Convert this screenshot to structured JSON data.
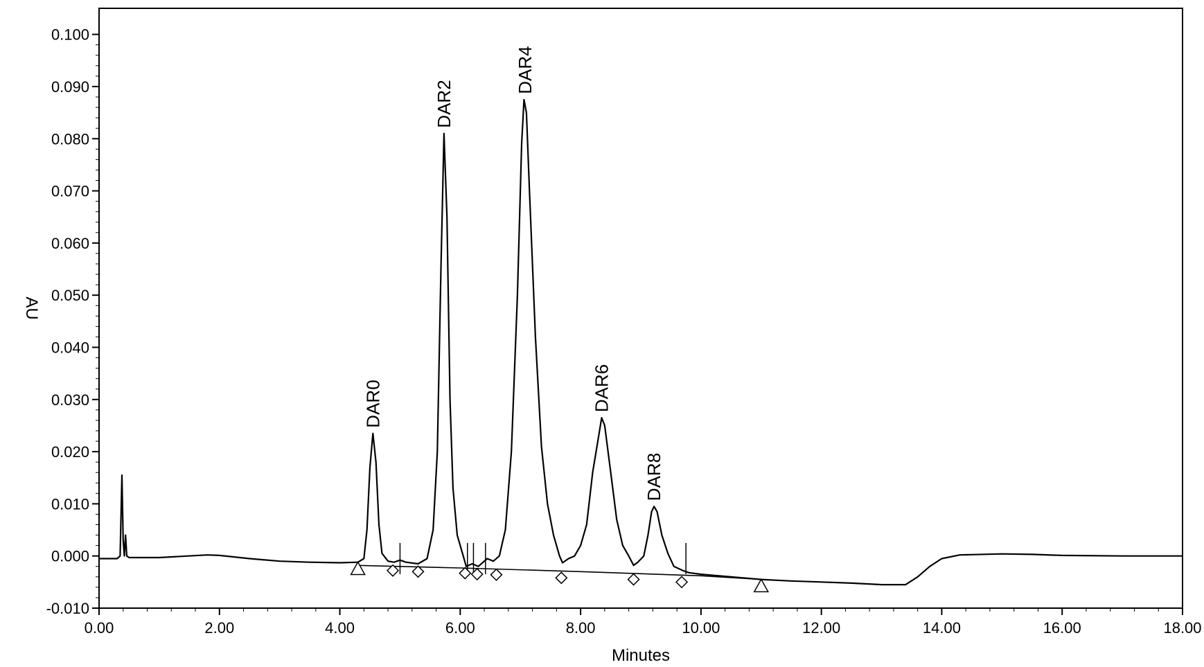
{
  "chart_data": {
    "type": "line",
    "xlabel": "Minutes",
    "ylabel": "AU",
    "xlim": [
      0,
      18
    ],
    "ylim": [
      -0.01,
      0.105
    ],
    "x_ticks": [
      "0.00",
      "2.00",
      "4.00",
      "6.00",
      "8.00",
      "10.00",
      "12.00",
      "14.00",
      "16.00",
      "18.00"
    ],
    "y_ticks": [
      "-0.010",
      "0.000",
      "0.010",
      "0.020",
      "0.030",
      "0.040",
      "0.050",
      "0.060",
      "0.070",
      "0.080",
      "0.090",
      "0.100"
    ],
    "grid": false,
    "series": [
      {
        "points": [
          [
            0.0,
            -0.0005
          ],
          [
            0.3,
            -0.0005
          ],
          [
            0.35,
            0.0
          ],
          [
            0.38,
            0.0155
          ],
          [
            0.4,
            0.003
          ],
          [
            0.42,
            0.0
          ],
          [
            0.44,
            0.004
          ],
          [
            0.46,
            0.0
          ],
          [
            0.5,
            -0.0003
          ],
          [
            1.0,
            -0.0003
          ],
          [
            1.8,
            0.0002
          ],
          [
            2.0,
            0.0001
          ],
          [
            2.5,
            -0.0005
          ],
          [
            3.0,
            -0.001
          ],
          [
            3.5,
            -0.0012
          ],
          [
            4.0,
            -0.0013
          ],
          [
            4.3,
            -0.0012
          ],
          [
            4.4,
            -0.0005
          ],
          [
            4.45,
            0.005
          ],
          [
            4.5,
            0.017
          ],
          [
            4.55,
            0.0235
          ],
          [
            4.6,
            0.018
          ],
          [
            4.65,
            0.006
          ],
          [
            4.7,
            0.0005
          ],
          [
            4.8,
            -0.001
          ],
          [
            4.9,
            -0.0012
          ],
          [
            5.0,
            -0.0008
          ],
          [
            5.1,
            -0.0012
          ],
          [
            5.3,
            -0.0015
          ],
          [
            5.45,
            -0.0005
          ],
          [
            5.55,
            0.005
          ],
          [
            5.62,
            0.02
          ],
          [
            5.68,
            0.055
          ],
          [
            5.73,
            0.081
          ],
          [
            5.78,
            0.065
          ],
          [
            5.83,
            0.03
          ],
          [
            5.88,
            0.013
          ],
          [
            5.95,
            0.004
          ],
          [
            6.05,
            0.0
          ],
          [
            6.1,
            -0.002
          ],
          [
            6.2,
            -0.0015
          ],
          [
            6.3,
            -0.002
          ],
          [
            6.45,
            -0.0005
          ],
          [
            6.55,
            -0.001
          ],
          [
            6.65,
            0.0
          ],
          [
            6.75,
            0.005
          ],
          [
            6.85,
            0.02
          ],
          [
            6.95,
            0.05
          ],
          [
            7.02,
            0.079
          ],
          [
            7.06,
            0.0875
          ],
          [
            7.1,
            0.085
          ],
          [
            7.15,
            0.07
          ],
          [
            7.25,
            0.042
          ],
          [
            7.35,
            0.021
          ],
          [
            7.45,
            0.01
          ],
          [
            7.55,
            0.004
          ],
          [
            7.65,
            0.0
          ],
          [
            7.7,
            -0.0013
          ],
          [
            7.8,
            -0.0005
          ],
          [
            7.9,
            0.0
          ],
          [
            8.0,
            0.002
          ],
          [
            8.1,
            0.006
          ],
          [
            8.2,
            0.016
          ],
          [
            8.3,
            0.023
          ],
          [
            8.35,
            0.0265
          ],
          [
            8.4,
            0.025
          ],
          [
            8.5,
            0.016
          ],
          [
            8.6,
            0.007
          ],
          [
            8.7,
            0.002
          ],
          [
            8.8,
            0.0
          ],
          [
            8.88,
            -0.0018
          ],
          [
            8.95,
            -0.0012
          ],
          [
            9.05,
            0.0
          ],
          [
            9.12,
            0.004
          ],
          [
            9.18,
            0.0085
          ],
          [
            9.22,
            0.0095
          ],
          [
            9.27,
            0.0085
          ],
          [
            9.35,
            0.004
          ],
          [
            9.45,
            0.0005
          ],
          [
            9.55,
            -0.002
          ],
          [
            9.7,
            -0.0028
          ],
          [
            9.8,
            -0.0032
          ],
          [
            10.0,
            -0.0035
          ],
          [
            10.5,
            -0.004
          ],
          [
            11.0,
            -0.0045
          ],
          [
            11.5,
            -0.0048
          ],
          [
            12.0,
            -0.005
          ],
          [
            12.5,
            -0.0052
          ],
          [
            13.0,
            -0.0055
          ],
          [
            13.4,
            -0.0055
          ],
          [
            13.6,
            -0.004
          ],
          [
            13.8,
            -0.002
          ],
          [
            14.0,
            -0.0005
          ],
          [
            14.3,
            0.0002
          ],
          [
            15.0,
            0.0004
          ],
          [
            15.5,
            0.0003
          ],
          [
            16.0,
            0.0001
          ],
          [
            17.0,
            0.0
          ],
          [
            18.0,
            0.0
          ]
        ]
      },
      {
        "points": [
          [
            4.3,
            -0.0018
          ],
          [
            6.0,
            -0.0023
          ],
          [
            8.0,
            -0.003
          ],
          [
            10.0,
            -0.0038
          ],
          [
            11.0,
            -0.0045
          ]
        ]
      }
    ],
    "peak_labels": [
      {
        "text": "DAR0",
        "x": 4.55,
        "y": 0.0235
      },
      {
        "text": "DAR2",
        "x": 5.73,
        "y": 0.081
      },
      {
        "text": "DAR4",
        "x": 7.08,
        "y": 0.0875
      },
      {
        "text": "DAR6",
        "x": 8.35,
        "y": 0.0265
      },
      {
        "text": "DAR8",
        "x": 9.22,
        "y": 0.0095
      }
    ],
    "markers": [
      {
        "shape": "triangle",
        "x": 4.3,
        "y": -0.0025
      },
      {
        "shape": "triangle",
        "x": 11.0,
        "y": -0.0058
      },
      {
        "shape": "diamond",
        "x": 4.88,
        "y": -0.0028
      },
      {
        "shape": "diamond",
        "x": 5.3,
        "y": -0.003
      },
      {
        "shape": "diamond",
        "x": 6.08,
        "y": -0.0033
      },
      {
        "shape": "diamond",
        "x": 6.28,
        "y": -0.0035
      },
      {
        "shape": "diamond",
        "x": 6.6,
        "y": -0.0036
      },
      {
        "shape": "diamond",
        "x": 7.68,
        "y": -0.0042
      },
      {
        "shape": "diamond",
        "x": 8.88,
        "y": -0.0045
      },
      {
        "shape": "diamond",
        "x": 9.68,
        "y": -0.005
      }
    ],
    "drop_lines": [
      5.0,
      6.12,
      6.22,
      6.42,
      9.75
    ]
  }
}
